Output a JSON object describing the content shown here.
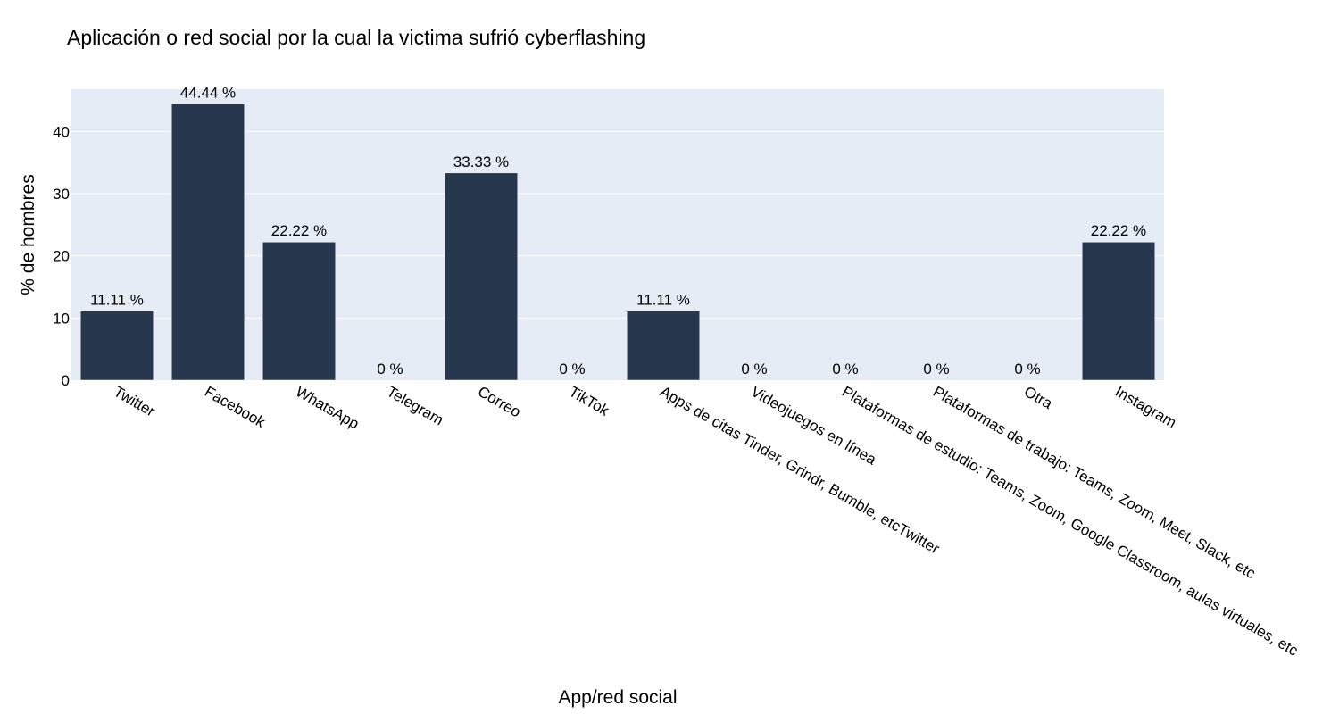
{
  "chart_data": {
    "type": "bar",
    "title": "Aplicación o red social por la cual la victima sufrió cyberflashing",
    "xlabel": "App/red social",
    "ylabel": "% de hombres",
    "ylim": [
      0,
      46.8
    ],
    "yticks": [
      0,
      10,
      20,
      30,
      40
    ],
    "grid": true,
    "legend": "none",
    "categories": [
      "Twitter",
      "Facebook",
      "WhatsApp",
      "Telegram",
      "Correo",
      "TikTok",
      "Apps de citas Tinder, Grindr, Bumble, etcTwitter",
      "Videojuegos en línea",
      "Plataformas de estudio: Teams, Zoom, Google Classroom, aulas virtuales, etc",
      "Plataformas de trabajo: Teams, Zoom, Meet, Slack, etc",
      "Otra",
      "Instagram"
    ],
    "values": [
      11.11,
      44.44,
      22.22,
      0,
      33.33,
      0,
      11.11,
      0,
      0,
      0,
      0,
      22.22
    ],
    "data_labels": [
      "11.11 %",
      "44.44 %",
      "22.22 %",
      "0 %",
      "33.33 %",
      "0 %",
      "11.11 %",
      "0 %",
      "0 %",
      "0 %",
      "0 %",
      "22.22 %"
    ],
    "colors": {
      "bar": "#27374d",
      "plot_bg": "#e5ecf6",
      "grid": "#ffffff"
    }
  }
}
